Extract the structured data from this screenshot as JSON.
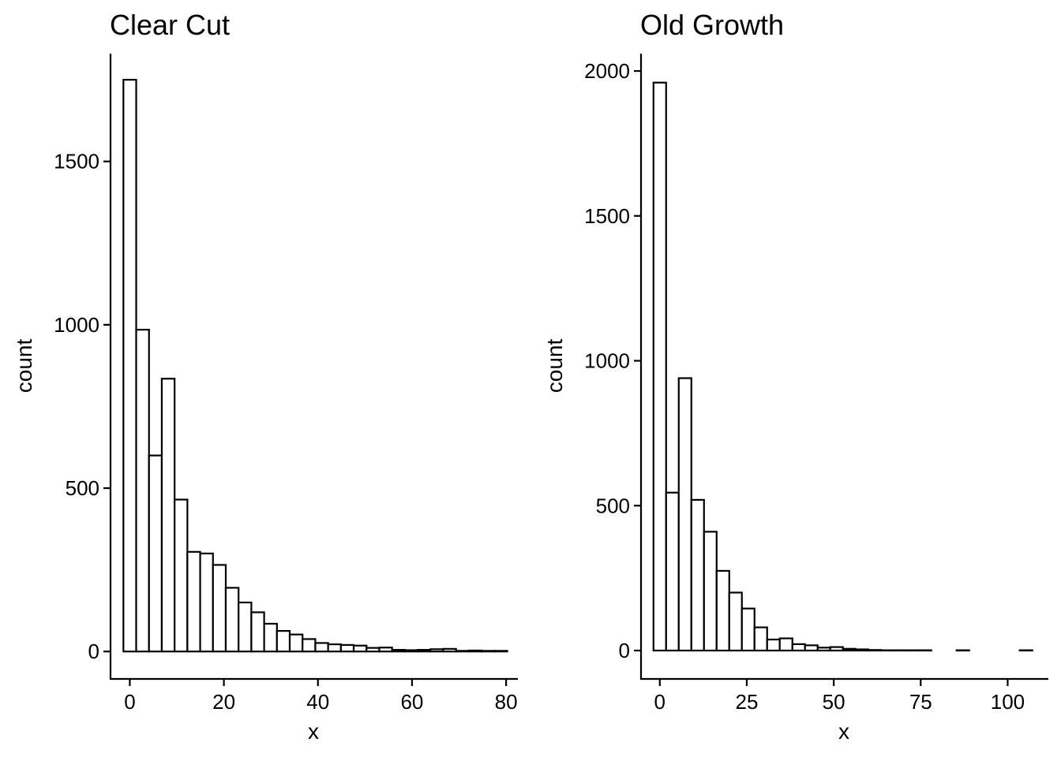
{
  "chart_data": [
    {
      "type": "bar",
      "title": "Clear Cut",
      "xlabel": "x",
      "ylabel": "count",
      "xlim": [
        -4.1,
        82.5
      ],
      "ylim": [
        -84,
        1830
      ],
      "x_ticks": [
        0,
        20,
        40,
        60,
        80
      ],
      "y_ticks": [
        0,
        500,
        1000,
        1500
      ],
      "bin_width": 2.72,
      "bin_start": -1.36,
      "values": [
        1750,
        985,
        600,
        835,
        465,
        305,
        300,
        265,
        195,
        150,
        120,
        85,
        63,
        52,
        38,
        26,
        22,
        20,
        18,
        11,
        12,
        5,
        4,
        5,
        7,
        8,
        2,
        3,
        2,
        2
      ],
      "grid": false,
      "legend": "none"
    },
    {
      "type": "bar",
      "title": "Old Growth",
      "xlabel": "x",
      "ylabel": "count",
      "xlim": [
        -5.4,
        111.7
      ],
      "ylim": [
        -98,
        2060
      ],
      "x_ticks": [
        0,
        25,
        50,
        75,
        100
      ],
      "y_ticks": [
        0,
        500,
        1000,
        1500,
        2000
      ],
      "bin_width": 3.63,
      "bin_start": -1.815,
      "values": [
        1960,
        545,
        940,
        520,
        410,
        275,
        200,
        145,
        80,
        38,
        42,
        22,
        18,
        10,
        12,
        6,
        4,
        2,
        1,
        1,
        1,
        1,
        0,
        0,
        1,
        0,
        0,
        0,
        0,
        1
      ],
      "grid": false,
      "legend": "none"
    }
  ]
}
